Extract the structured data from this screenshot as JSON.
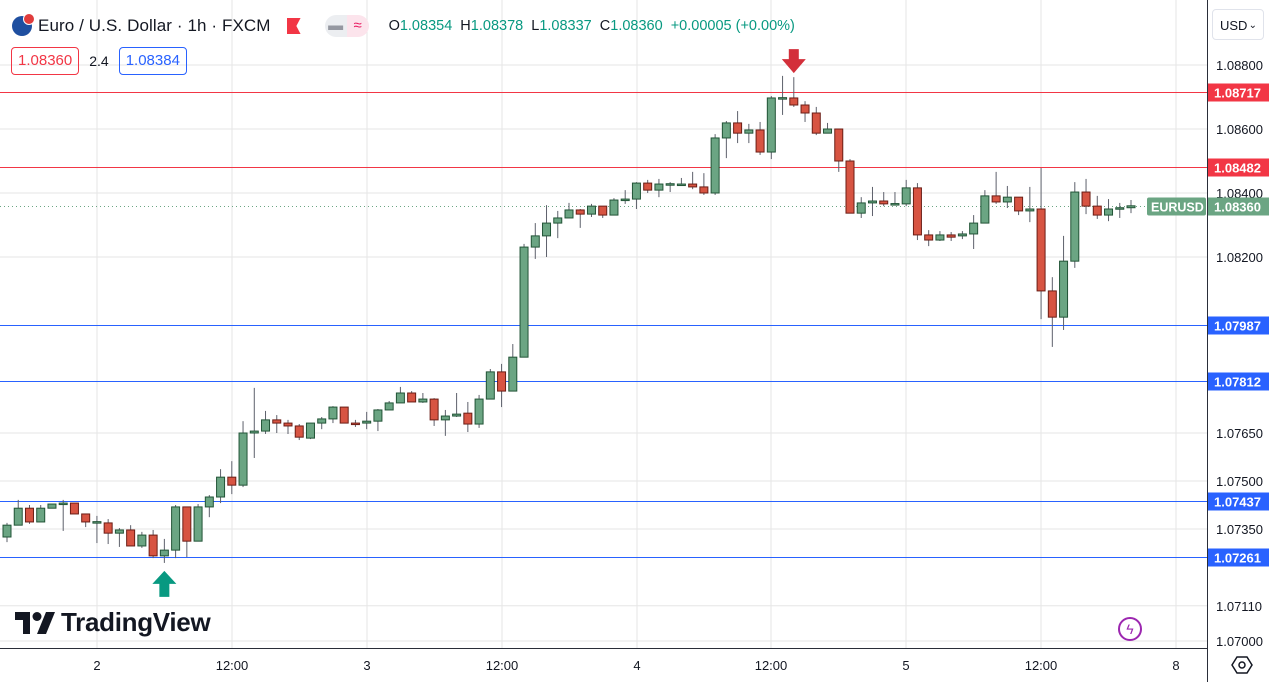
{
  "header": {
    "title": "Euro / U.S. Dollar · 1h · FXCM",
    "symbol_icon": "eu-us-flag-icon",
    "flag_icon": "red-flag-icon",
    "pill_icons": [
      "minus-icon",
      "approx-icon"
    ],
    "ohlc": {
      "o_label": "O",
      "o": "1.08354",
      "h_label": "H",
      "h": "1.08378",
      "l_label": "L",
      "l": "1.08337",
      "c_label": "C",
      "c": "1.08360",
      "change": "+0.00005 (+0.00%)"
    },
    "bid": "1.08360",
    "spread": "2.4",
    "ask": "1.08384"
  },
  "currency_select": "USD",
  "logo": "TradingView",
  "colors": {
    "up": "#6ba583",
    "up_border": "#225437",
    "down": "#d75442",
    "down_border": "#6b1e16",
    "resistance": "#f23645",
    "support": "#2962ff",
    "last_price": "#6ba583",
    "grid": "#e6e6e6",
    "arrow_down": "#d32f3a",
    "arrow_up": "#089981"
  },
  "chart_data": {
    "type": "candlestick",
    "symbol": "EURUSD",
    "interval": "1h",
    "ylim": [
      1.07,
      1.089
    ],
    "grid": true,
    "y_ticks": [
      "1.08800",
      "1.08600",
      "1.08400",
      "1.08200",
      "1.07650",
      "1.07500",
      "1.07350",
      "1.07110",
      "1.07000"
    ],
    "x_ticks": [
      "2",
      "12:00",
      "3",
      "12:00",
      "4",
      "12:00",
      "5",
      "12:00",
      "8"
    ],
    "last_price": {
      "label": "EURUSD",
      "value": "1.08360"
    },
    "resistance_levels": [
      "1.08717",
      "1.08482"
    ],
    "support_levels": [
      "1.07987",
      "1.07812",
      "1.07437",
      "1.07261"
    ],
    "annotations": [
      {
        "type": "arrow-down",
        "candle_index": 70
      },
      {
        "type": "arrow-up",
        "candle_index": 14
      }
    ],
    "candles_ohlc": [
      [
        1.07325,
        1.07369,
        1.07309,
        1.07362
      ],
      [
        1.07362,
        1.07441,
        1.07362,
        1.07415
      ],
      [
        1.07415,
        1.07425,
        1.07366,
        1.07372
      ],
      [
        1.07372,
        1.07425,
        1.07372,
        1.07415
      ],
      [
        1.07415,
        1.07428,
        1.07415,
        1.07428
      ],
      [
        1.07428,
        1.07441,
        1.07344,
        1.07431
      ],
      [
        1.07431,
        1.07431,
        1.07397,
        1.07397
      ],
      [
        1.07397,
        1.07397,
        1.07356,
        1.07372
      ],
      [
        1.07372,
        1.07391,
        1.07306,
        1.07373
      ],
      [
        1.07369,
        1.07381,
        1.07303,
        1.07337
      ],
      [
        1.07337,
        1.07353,
        1.07294,
        1.07347
      ],
      [
        1.07347,
        1.07362,
        1.07297,
        1.07297
      ],
      [
        1.07297,
        1.07341,
        1.07291,
        1.07331
      ],
      [
        1.07331,
        1.07347,
        1.07259,
        1.07266
      ],
      [
        1.07266,
        1.07319,
        1.07244,
        1.07284
      ],
      [
        1.07284,
        1.07425,
        1.07259,
        1.07419
      ],
      [
        1.07419,
        1.07419,
        1.07262,
        1.07312
      ],
      [
        1.07312,
        1.07428,
        1.07312,
        1.07419
      ],
      [
        1.07419,
        1.07456,
        1.07387,
        1.0745
      ],
      [
        1.0745,
        1.07537,
        1.07431,
        1.07512
      ],
      [
        1.07512,
        1.07562,
        1.07459,
        1.07487
      ],
      [
        1.07487,
        1.07687,
        1.07481,
        1.0765
      ],
      [
        1.0765,
        1.07791,
        1.07572,
        1.07656
      ],
      [
        1.07656,
        1.07719,
        1.07647,
        1.07691
      ],
      [
        1.07691,
        1.07706,
        1.0765,
        1.07681
      ],
      [
        1.07681,
        1.07691,
        1.07647,
        1.07672
      ],
      [
        1.07672,
        1.07678,
        1.07628,
        1.07637
      ],
      [
        1.07634,
        1.07681,
        1.07631,
        1.07681
      ],
      [
        1.07681,
        1.077,
        1.07662,
        1.07694
      ],
      [
        1.07694,
        1.07734,
        1.07681,
        1.07731
      ],
      [
        1.07731,
        1.07731,
        1.07681,
        1.07681
      ],
      [
        1.07681,
        1.07691,
        1.07669,
        1.07678
      ],
      [
        1.07681,
        1.07716,
        1.07662,
        1.07687
      ],
      [
        1.07687,
        1.07725,
        1.07656,
        1.07722
      ],
      [
        1.07722,
        1.0775,
        1.07722,
        1.07744
      ],
      [
        1.07744,
        1.07794,
        1.07744,
        1.07775
      ],
      [
        1.07775,
        1.07781,
        1.07747,
        1.07747
      ],
      [
        1.07747,
        1.07775,
        1.07744,
        1.07756
      ],
      [
        1.07756,
        1.07759,
        1.07672,
        1.07691
      ],
      [
        1.07691,
        1.07722,
        1.07641,
        1.07703
      ],
      [
        1.07703,
        1.07775,
        1.077,
        1.07709
      ],
      [
        1.07712,
        1.07747,
        1.07653,
        1.07678
      ],
      [
        1.07678,
        1.07769,
        1.07666,
        1.07756
      ],
      [
        1.07756,
        1.0785,
        1.07756,
        1.07841
      ],
      [
        1.07841,
        1.07866,
        1.07731,
        1.07781
      ],
      [
        1.07781,
        1.07928,
        1.07781,
        1.07887
      ],
      [
        1.07887,
        1.08241,
        1.07887,
        1.08231
      ],
      [
        1.08231,
        1.08306,
        1.08194,
        1.08266
      ],
      [
        1.08266,
        1.08362,
        1.082,
        1.08306
      ],
      [
        1.08306,
        1.08344,
        1.08259,
        1.08322
      ],
      [
        1.08322,
        1.08369,
        1.08322,
        1.08347
      ],
      [
        1.08347,
        1.0835,
        1.08291,
        1.08334
      ],
      [
        1.08334,
        1.08366,
        1.08325,
        1.08359
      ],
      [
        1.08359,
        1.08359,
        1.08322,
        1.08331
      ],
      [
        1.08331,
        1.08384,
        1.08331,
        1.08378
      ],
      [
        1.08378,
        1.08409,
        1.08366,
        1.08381
      ],
      [
        1.08381,
        1.08434,
        1.0835,
        1.08431
      ],
      [
        1.08431,
        1.08441,
        1.084,
        1.08409
      ],
      [
        1.08409,
        1.08444,
        1.08387,
        1.08428
      ],
      [
        1.08428,
        1.08434,
        1.08403,
        1.08429
      ],
      [
        1.08428,
        1.08447,
        1.08425,
        1.08428
      ],
      [
        1.08428,
        1.08466,
        1.08412,
        1.08419
      ],
      [
        1.08419,
        1.08462,
        1.08394,
        1.084
      ],
      [
        1.084,
        1.08584,
        1.08394,
        1.08572
      ],
      [
        1.08572,
        1.08625,
        1.08509,
        1.08619
      ],
      [
        1.08619,
        1.08656,
        1.08556,
        1.08587
      ],
      [
        1.08587,
        1.08616,
        1.08556,
        1.08597
      ],
      [
        1.08597,
        1.08622,
        1.08519,
        1.08528
      ],
      [
        1.08528,
        1.08703,
        1.08506,
        1.08697
      ],
      [
        1.08697,
        1.08766,
        1.08644,
        1.08698
      ],
      [
        1.08697,
        1.08762,
        1.08669,
        1.08675
      ],
      [
        1.08675,
        1.08687,
        1.08622,
        1.0865
      ],
      [
        1.0865,
        1.08669,
        1.08581,
        1.08587
      ],
      [
        1.08587,
        1.08619,
        1.08587,
        1.086
      ],
      [
        1.086,
        1.086,
        1.08466,
        1.085
      ],
      [
        1.085,
        1.08506,
        1.08337,
        1.08337
      ],
      [
        1.08337,
        1.08387,
        1.08322,
        1.08369
      ],
      [
        1.08369,
        1.08419,
        1.08328,
        1.08375
      ],
      [
        1.08375,
        1.08403,
        1.08359,
        1.08366
      ],
      [
        1.08366,
        1.08403,
        1.08366,
        1.08367
      ],
      [
        1.08366,
        1.08441,
        1.08359,
        1.08416
      ],
      [
        1.08416,
        1.08431,
        1.08253,
        1.08269
      ],
      [
        1.08269,
        1.08284,
        1.08234,
        1.08253
      ],
      [
        1.08253,
        1.08281,
        1.0825,
        1.08269
      ],
      [
        1.08269,
        1.08278,
        1.0825,
        1.08262
      ],
      [
        1.08266,
        1.08281,
        1.08256,
        1.08272
      ],
      [
        1.08272,
        1.08331,
        1.08225,
        1.08306
      ],
      [
        1.08306,
        1.08409,
        1.08306,
        1.08391
      ],
      [
        1.08391,
        1.08466,
        1.08366,
        1.08372
      ],
      [
        1.08372,
        1.08422,
        1.08353,
        1.08387
      ],
      [
        1.08387,
        1.08387,
        1.08331,
        1.08344
      ],
      [
        1.08344,
        1.08419,
        1.08309,
        1.0835
      ],
      [
        1.0835,
        1.08478,
        1.08006,
        1.08094
      ],
      [
        1.08094,
        1.08137,
        1.07919,
        1.08012
      ],
      [
        1.08012,
        1.08266,
        1.07972,
        1.08187
      ],
      [
        1.08187,
        1.08434,
        1.08166,
        1.08403
      ],
      [
        1.08403,
        1.08444,
        1.08334,
        1.08359
      ],
      [
        1.08359,
        1.08391,
        1.08319,
        1.08331
      ],
      [
        1.08331,
        1.08381,
        1.08312,
        1.0835
      ],
      [
        1.0835,
        1.08369,
        1.08322,
        1.08354
      ],
      [
        1.08354,
        1.08378,
        1.08337,
        1.0836
      ]
    ]
  }
}
